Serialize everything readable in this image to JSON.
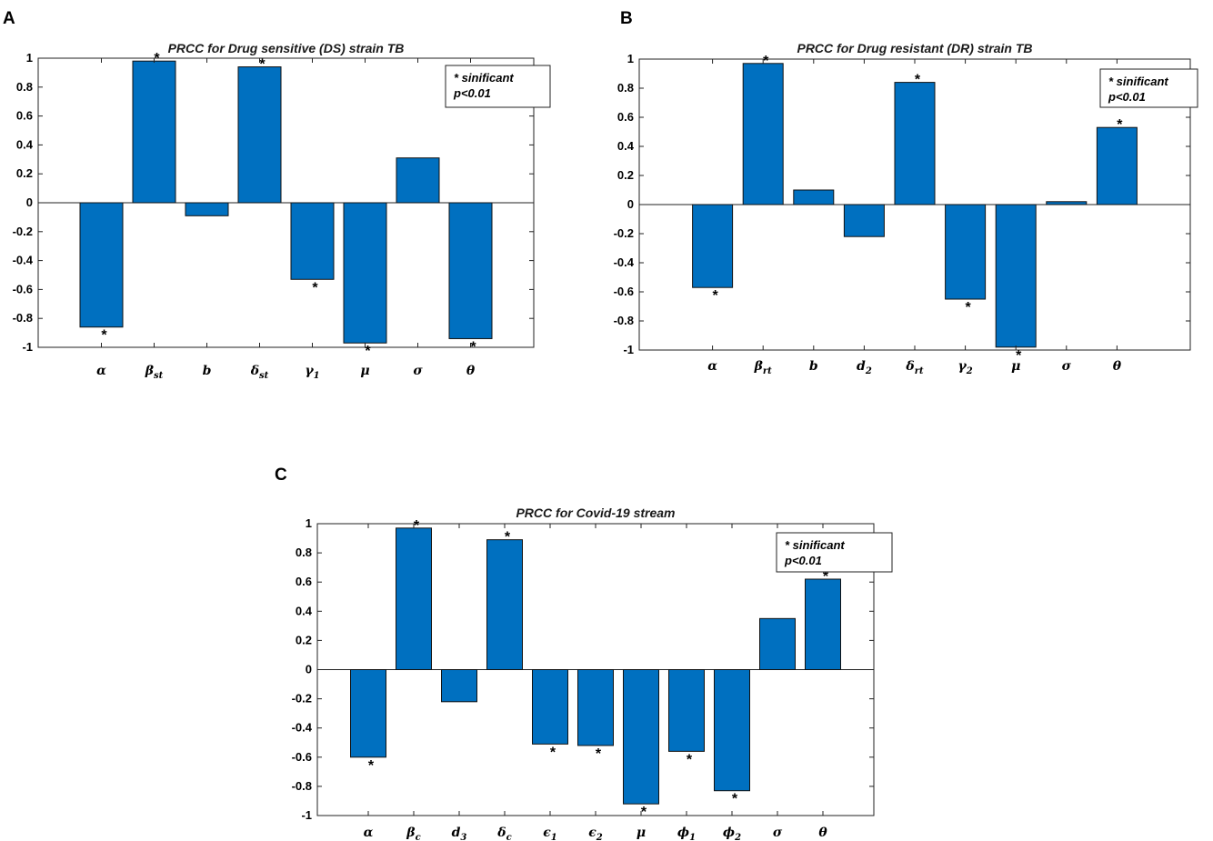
{
  "chart_data": [
    {
      "panel": "A",
      "type": "bar",
      "title": "PRCC for Drug sensitive (DS) strain TB",
      "categories": [
        {
          "base": "α",
          "sub": ""
        },
        {
          "base": "β",
          "sub": "st"
        },
        {
          "base": "b",
          "sub": ""
        },
        {
          "base": "δ",
          "sub": "st"
        },
        {
          "base": "γ",
          "sub": "1"
        },
        {
          "base": "μ",
          "sub": ""
        },
        {
          "base": "σ",
          "sub": ""
        },
        {
          "base": "θ",
          "sub": ""
        }
      ],
      "values": [
        -0.86,
        0.98,
        -0.09,
        0.94,
        -0.53,
        -0.97,
        0.31,
        -0.94
      ],
      "significant": [
        true,
        true,
        false,
        true,
        true,
        true,
        false,
        true
      ],
      "ylim": [
        -1,
        1
      ],
      "yticks": [
        1,
        0.8,
        0.6,
        0.4,
        0.2,
        0,
        -0.2,
        -0.4,
        -0.6,
        -0.8,
        -1
      ],
      "ytick_labels": [
        "1",
        "0.8",
        "0.6",
        "0.4",
        "0.2",
        "0",
        "-0.2",
        "-0.4",
        "-0.6",
        "-0.8",
        "-1"
      ],
      "legend": [
        "* sinificant",
        "p<0.01"
      ],
      "legend_position": "top-right",
      "bar_color": "#0070c0",
      "significance_marker": "*"
    },
    {
      "panel": "B",
      "type": "bar",
      "title": "PRCC for Drug resistant (DR) strain TB",
      "categories": [
        {
          "base": "α",
          "sub": ""
        },
        {
          "base": "β",
          "sub": "rt"
        },
        {
          "base": "b",
          "sub": ""
        },
        {
          "base": "d",
          "sub": "2"
        },
        {
          "base": "δ",
          "sub": "rt"
        },
        {
          "base": "γ",
          "sub": "2"
        },
        {
          "base": "μ",
          "sub": ""
        },
        {
          "base": "σ",
          "sub": ""
        },
        {
          "base": "θ",
          "sub": ""
        }
      ],
      "values": [
        -0.57,
        0.97,
        0.1,
        -0.22,
        0.84,
        -0.65,
        -0.98,
        0.02,
        0.53
      ],
      "significant": [
        true,
        true,
        false,
        false,
        true,
        true,
        true,
        false,
        true
      ],
      "ylim": [
        -1,
        1
      ],
      "yticks": [
        1,
        0.8,
        0.6,
        0.4,
        0.2,
        0,
        -0.2,
        -0.4,
        -0.6,
        -0.8,
        -1
      ],
      "ytick_labels": [
        "1",
        "0.8",
        "0.6",
        "0.4",
        "0.2",
        "0",
        "-0.2",
        "-0.4",
        "-0.6",
        "-0.8",
        "-1"
      ],
      "legend": [
        "* sinificant",
        "p<0.01"
      ],
      "legend_position": "top-right",
      "bar_color": "#0070c0",
      "significance_marker": "*"
    },
    {
      "panel": "C",
      "type": "bar",
      "title": "PRCC for Covid-19 stream",
      "categories": [
        {
          "base": "α",
          "sub": ""
        },
        {
          "base": "β",
          "sub": "c"
        },
        {
          "base": "d",
          "sub": "3"
        },
        {
          "base": "δ",
          "sub": "c"
        },
        {
          "base": "ϵ",
          "sub": "1"
        },
        {
          "base": "ϵ",
          "sub": "2"
        },
        {
          "base": "μ",
          "sub": ""
        },
        {
          "base": "ϕ",
          "sub": "1"
        },
        {
          "base": "ϕ",
          "sub": "2"
        },
        {
          "base": "σ",
          "sub": ""
        },
        {
          "base": "θ",
          "sub": ""
        }
      ],
      "values": [
        -0.6,
        0.97,
        -0.22,
        0.89,
        -0.51,
        -0.52,
        -0.92,
        -0.56,
        -0.83,
        0.35,
        0.62
      ],
      "significant": [
        true,
        true,
        false,
        true,
        true,
        true,
        true,
        true,
        true,
        false,
        true
      ],
      "ylim": [
        -1,
        1
      ],
      "yticks": [
        1,
        0.8,
        0.6,
        0.4,
        0.2,
        0,
        -0.2,
        -0.4,
        -0.6,
        -0.8,
        -1
      ],
      "ytick_labels": [
        "1",
        "0.8",
        "0.6",
        "0.4",
        "0.2",
        "0",
        "-0.2",
        "-0.4",
        "-0.6",
        "-0.8",
        "-1"
      ],
      "legend": [
        "* sinificant",
        "p<0.01"
      ],
      "legend_position": "top-right",
      "bar_color": "#0070c0",
      "significance_marker": "*"
    }
  ]
}
